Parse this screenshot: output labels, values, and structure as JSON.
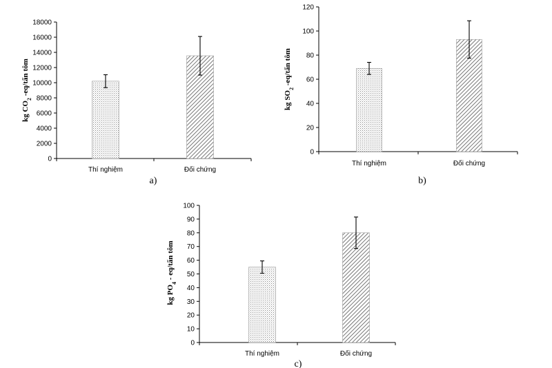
{
  "chart_data": [
    {
      "type": "bar",
      "panel_label": "a)",
      "categories": [
        "Thí nghiệm",
        "Đối chứng"
      ],
      "values": [
        10200,
        13550
      ],
      "errors": [
        850,
        2550
      ],
      "patterns": [
        "dots",
        "diagonal"
      ],
      "ylabel": "kg CO",
      "ylabel_sub": "2",
      "ylabel_tail": " -eq/tấn tôm",
      "ylim": [
        0,
        18000
      ],
      "yticks": [
        0,
        2000,
        4000,
        6000,
        8000,
        10000,
        12000,
        14000,
        16000,
        18000
      ]
    },
    {
      "type": "bar",
      "panel_label": "b)",
      "categories": [
        "Thí nghiệm",
        "Đối chứng"
      ],
      "values": [
        69,
        93
      ],
      "errors": [
        5,
        15.5
      ],
      "patterns": [
        "dots",
        "diagonal"
      ],
      "ylabel": "kg SO",
      "ylabel_sub": "2",
      "ylabel_tail": " -eq/tấn tôm",
      "ylim": [
        0,
        120
      ],
      "yticks": [
        0,
        20,
        40,
        60,
        80,
        100,
        120
      ]
    },
    {
      "type": "bar",
      "panel_label": "c)",
      "categories": [
        "Thí nghiệm",
        "Đối chứng"
      ],
      "values": [
        55,
        80
      ],
      "errors": [
        4.5,
        11.5
      ],
      "patterns": [
        "dots",
        "diagonal"
      ],
      "ylabel": "kg PO",
      "ylabel_sub": "4",
      "ylabel_tail": " - eq/tấn tôm",
      "ylim": [
        0,
        100
      ],
      "yticks": [
        0,
        10,
        20,
        30,
        40,
        50,
        60,
        70,
        80,
        90,
        100
      ]
    }
  ]
}
